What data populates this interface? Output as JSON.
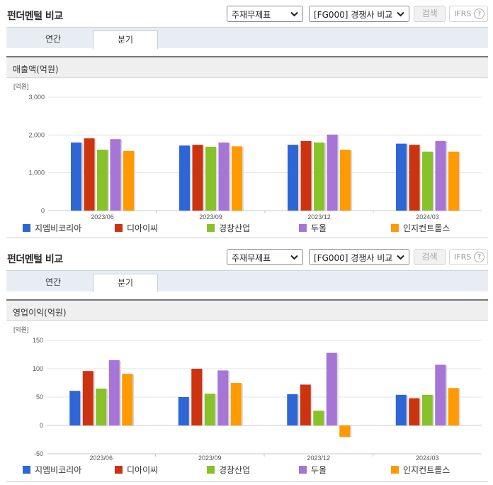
{
  "sections": [
    {
      "header": {
        "title": "펀더멘털 비교",
        "select_statement": "주재무제표",
        "select_compare": "[FG000] 경쟁사 비교",
        "search_label": "검색",
        "ifrs_label": "IFRS",
        "help_label": "?"
      },
      "tabs": [
        {
          "label": "연간",
          "active": false
        },
        {
          "label": "분기",
          "active": true
        }
      ],
      "metric_label": "매출액(억원)"
    },
    {
      "header": {
        "title": "펀더멘털 비교",
        "select_statement": "주재무제표",
        "select_compare": "[FG000] 경쟁사 비교",
        "search_label": "검색",
        "ifrs_label": "IFRS",
        "help_label": "?"
      },
      "tabs": [
        {
          "label": "연간",
          "active": false
        },
        {
          "label": "분기",
          "active": true
        }
      ],
      "metric_label": "영업이익(억원)"
    }
  ],
  "legend_colors": [
    "#2e66d6",
    "#cc3311",
    "#88c22a",
    "#a675d6",
    "#ff9a00"
  ],
  "chart_data": [
    {
      "type": "bar",
      "unit_label": "[억원]",
      "categories": [
        "2023/06",
        "2023/09",
        "2023/12",
        "2024/03"
      ],
      "ylim": [
        0,
        3000
      ],
      "yticks": [
        0,
        1000,
        2000,
        3000
      ],
      "ytick_labels": [
        "0",
        "1,000",
        "2,000",
        "3,000"
      ],
      "legend_position": "bottom",
      "series": [
        {
          "name": "지엠비코리아",
          "values": [
            1800,
            1720,
            1740,
            1770
          ]
        },
        {
          "name": "디아이씨",
          "values": [
            1910,
            1740,
            1840,
            1740
          ]
        },
        {
          "name": "경창산업",
          "values": [
            1610,
            1690,
            1800,
            1560
          ]
        },
        {
          "name": "두올",
          "values": [
            1890,
            1800,
            2010,
            1840
          ]
        },
        {
          "name": "인지컨트롤스",
          "values": [
            1580,
            1700,
            1610,
            1560
          ]
        }
      ]
    },
    {
      "type": "bar",
      "unit_label": "[억원]",
      "categories": [
        "2023/06",
        "2023/09",
        "2023/12",
        "2024/03"
      ],
      "ylim": [
        -50,
        150
      ],
      "yticks": [
        -50,
        0,
        50,
        100,
        150
      ],
      "ytick_labels": [
        "-50",
        "0",
        "50",
        "100",
        "150"
      ],
      "legend_position": "bottom",
      "series": [
        {
          "name": "지엠비코리아",
          "values": [
            61,
            50,
            55,
            54
          ]
        },
        {
          "name": "디아이씨",
          "values": [
            96,
            100,
            72,
            48
          ]
        },
        {
          "name": "경창산업",
          "values": [
            65,
            56,
            26,
            54
          ]
        },
        {
          "name": "두올",
          "values": [
            115,
            97,
            128,
            107
          ]
        },
        {
          "name": "인지컨트롤스",
          "values": [
            91,
            75,
            -20,
            66
          ]
        }
      ]
    }
  ]
}
